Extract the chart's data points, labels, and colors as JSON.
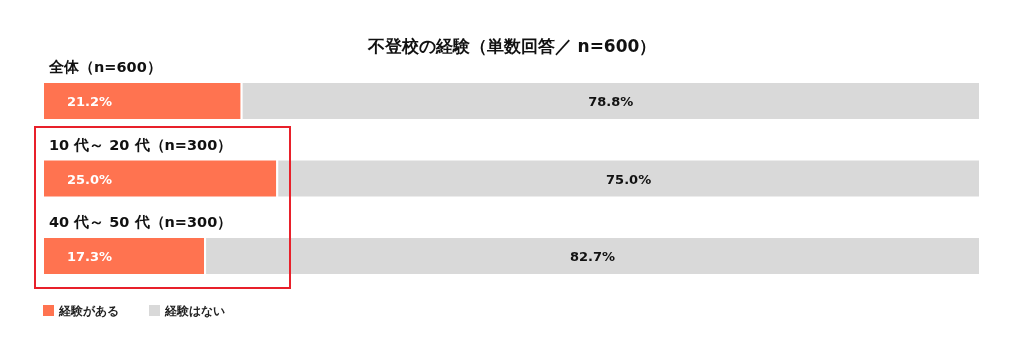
{
  "chart_data": {
    "type": "bar",
    "orientation": "horizontal",
    "stacked": true,
    "title": "不登校の経験（単数回答／ n=600）",
    "categories": [
      "全体（n=600）",
      "10 代～ 20 代（n=300）",
      "40 代～ 50 代（n=300）"
    ],
    "series": [
      {
        "name": "経験がある",
        "color": "#ff7350",
        "values": [
          21.2,
          25.0,
          17.3
        ],
        "value_labels": [
          "21.2%",
          "25.0%",
          "17.3%"
        ]
      },
      {
        "name": "経験はない",
        "color": "#d9d9d9",
        "values": [
          78.8,
          75.0,
          82.7
        ],
        "value_labels": [
          "78.8%",
          "75.0%",
          "82.7%"
        ]
      }
    ],
    "legend": "bottom left"
  }
}
